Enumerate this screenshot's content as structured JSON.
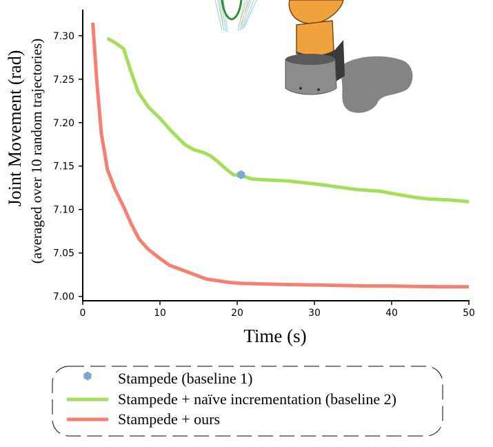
{
  "chart_data": {
    "type": "line",
    "xlabel": "Time (s)",
    "ylabel": "Joint Movement (rad)",
    "ylabel_sub": "(averaged over 10 random trajectories)",
    "xlim": [
      0,
      50
    ],
    "ylim": [
      6.995,
      7.33
    ],
    "xticks": [
      0,
      10,
      20,
      30,
      40,
      50
    ],
    "yticks": [
      7.0,
      7.05,
      7.1,
      7.15,
      7.2,
      7.25,
      7.3
    ],
    "ytick_labels": [
      "7.00",
      "7.05",
      "7.10",
      "7.15",
      "7.20",
      "7.25",
      "7.30"
    ],
    "xtick_labels": [
      "0",
      "10",
      "20",
      "30",
      "40",
      "50"
    ],
    "grid": false,
    "legend_position": "bottom",
    "series": [
      {
        "name": "Stampede (baseline 1)",
        "style": "marker",
        "marker": "hexagon",
        "color": "#7ba7d2",
        "x": [
          20.5
        ],
        "y": [
          7.14
        ]
      },
      {
        "name": "Stampede + naïve incrementation (baseline 2)",
        "style": "line",
        "color": "#a6de5a",
        "x": [
          3.2,
          4.2,
          5.3,
          6.2,
          7.2,
          8.5,
          10.0,
          11.5,
          13.2,
          14.3,
          15.5,
          16.5,
          17.5,
          18.5,
          19.5,
          20.5,
          22.0,
          24.0,
          26.5,
          28.5,
          30.5,
          33.0,
          35.5,
          38.5,
          41.0,
          43.0,
          45.0,
          47.5,
          50.0
        ],
        "y": [
          7.297,
          7.292,
          7.285,
          7.26,
          7.235,
          7.218,
          7.205,
          7.19,
          7.175,
          7.169,
          7.166,
          7.162,
          7.155,
          7.147,
          7.14,
          7.139,
          7.135,
          7.134,
          7.133,
          7.131,
          7.129,
          7.126,
          7.123,
          7.121,
          7.117,
          7.114,
          7.112,
          7.111,
          7.109
        ]
      },
      {
        "name": "Stampede + ours",
        "style": "line",
        "color": "#f77f70",
        "x": [
          1.3,
          1.8,
          2.4,
          3.2,
          4.2,
          5.3,
          6.3,
          7.3,
          8.5,
          9.8,
          11.2,
          13.0,
          14.5,
          16.0,
          17.5,
          19.0,
          20.5,
          22.5,
          25.0,
          28.0,
          31.0,
          34.0,
          37.0,
          40.0,
          43.0,
          46.0,
          50.0
        ],
        "y": [
          7.315,
          7.25,
          7.188,
          7.146,
          7.123,
          7.103,
          7.083,
          7.066,
          7.054,
          7.045,
          7.036,
          7.03,
          7.025,
          7.02,
          7.018,
          7.016,
          7.015,
          7.0145,
          7.014,
          7.0135,
          7.013,
          7.0125,
          7.012,
          7.012,
          7.0115,
          7.0112,
          7.011
        ]
      }
    ]
  },
  "legend": {
    "items": [
      {
        "label": "Stampede (baseline 1)",
        "color": "#7ba7d2",
        "kind": "marker"
      },
      {
        "label": "Stampede + naïve incrementation (baseline 2)",
        "color": "#a6de5a",
        "kind": "line"
      },
      {
        "label": "Stampede + ours",
        "color": "#f77f70",
        "kind": "line"
      }
    ]
  },
  "inset": {
    "description_icon": "robot-arm-icon",
    "robot_color": "#f0a23c",
    "shadow_color": "#6e6e6e",
    "base_color": "#8c8c8c"
  }
}
